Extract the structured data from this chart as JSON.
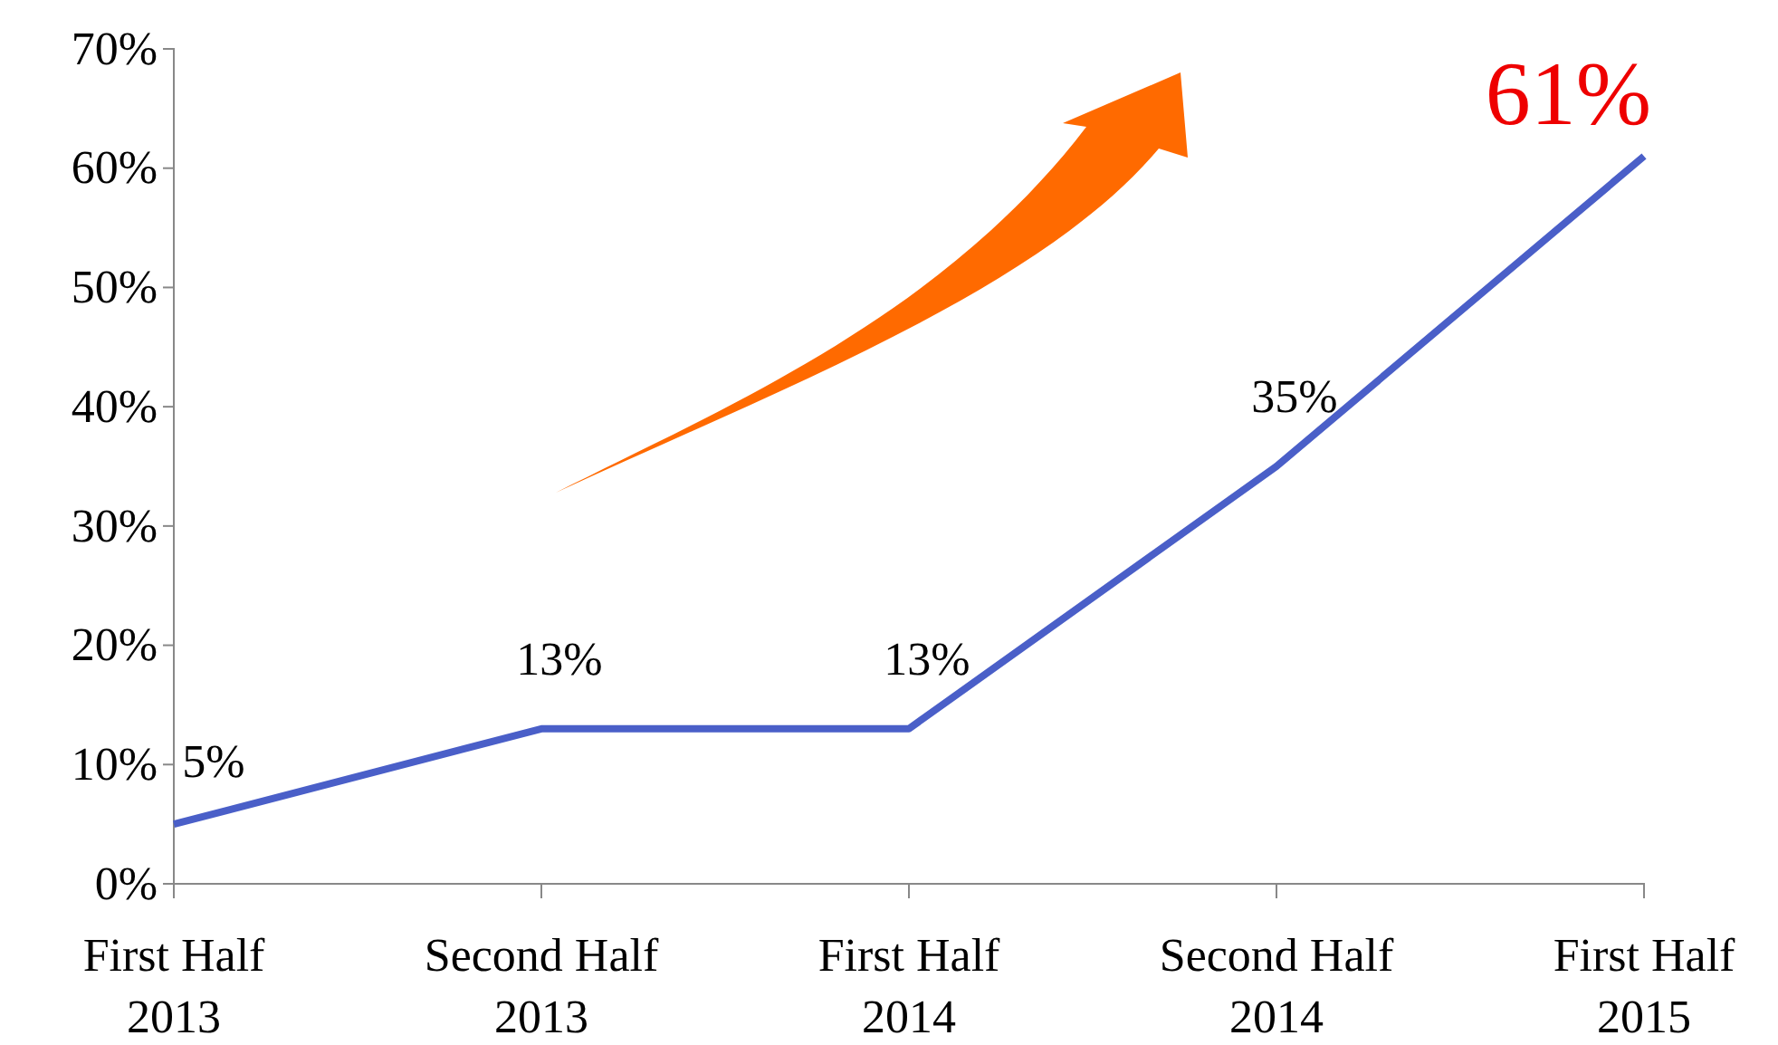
{
  "chart_data": {
    "type": "line",
    "categories": [
      "First Half\n2013",
      "Second Half\n2013",
      "First Half\n2014",
      "Second Half\n2014",
      "First Half\n2015"
    ],
    "series": [
      {
        "color": "#4a5fc8",
        "values": [
          5,
          13,
          13,
          35,
          61
        ],
        "value_labels": [
          "5%",
          "13%",
          "13%",
          "35%",
          "61%"
        ]
      }
    ],
    "ylim": [
      0,
      70
    ],
    "yticks": [
      {
        "value": 0,
        "label": "0%"
      },
      {
        "value": 10,
        "label": "10%"
      },
      {
        "value": 20,
        "label": "20%"
      },
      {
        "value": 30,
        "label": "30%"
      },
      {
        "value": 40,
        "label": "40%"
      },
      {
        "value": 50,
        "label": "50%"
      },
      {
        "value": 60,
        "label": "60%"
      },
      {
        "value": 70,
        "label": "70%"
      }
    ],
    "marker": "none",
    "line_style": "solid"
  }
}
